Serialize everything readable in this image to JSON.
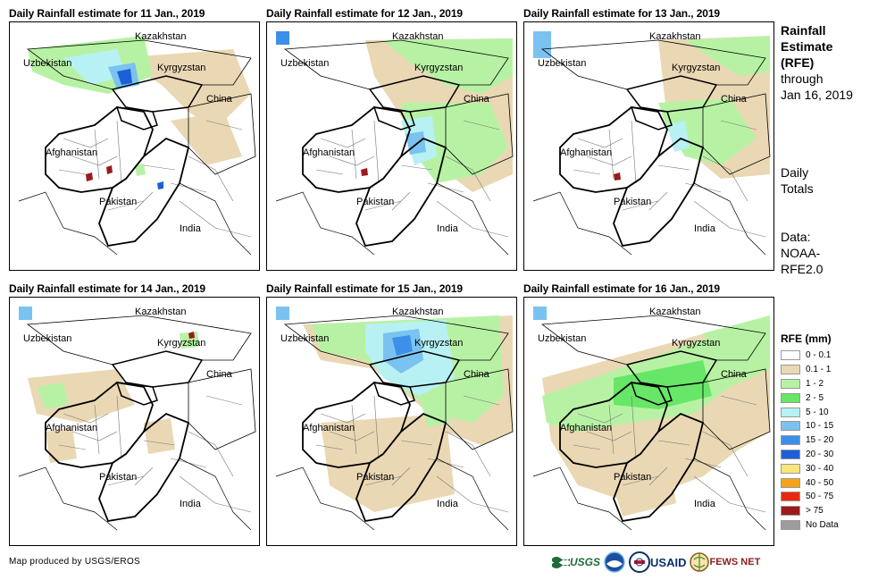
{
  "panels": [
    {
      "title": "Daily Rainfall estimate for 11 Jan., 2019"
    },
    {
      "title": "Daily Rainfall estimate for 12 Jan., 2019"
    },
    {
      "title": "Daily Rainfall estimate for 13 Jan., 2019"
    },
    {
      "title": "Daily Rainfall estimate for 14 Jan., 2019"
    },
    {
      "title": "Daily Rainfall estimate for 15 Jan., 2019"
    },
    {
      "title": "Daily Rainfall estimate for 16 Jan., 2019"
    }
  ],
  "map_labels": {
    "kazakhstan": "Kazakhstan",
    "uzbekistan": "Uzbekistan",
    "kyrgyzstan": "Kyrgyzstan",
    "china": "China",
    "afghanistan": "Afghanistan",
    "pakistan": "Pakistan",
    "india": "India"
  },
  "side_panel": {
    "title_line1": "Rainfall",
    "title_line2": "Estimate",
    "title_line3": "(RFE)",
    "through": "through",
    "date": "Jan 16, 2019",
    "totals_line1": "Daily",
    "totals_line2": "Totals",
    "data_line1": "Data:",
    "data_line2": "NOAA-",
    "data_line3": "RFE2.0"
  },
  "legend": {
    "title": "RFE (mm)",
    "items": [
      {
        "label": "0 - 0.1",
        "color": "#ffffff"
      },
      {
        "label": "0.1 - 1",
        "color": "#ead8b4"
      },
      {
        "label": "1 - 2",
        "color": "#b7f2a4"
      },
      {
        "label": "2 - 5",
        "color": "#67e667"
      },
      {
        "label": "5 - 10",
        "color": "#b7f1f4"
      },
      {
        "label": "10 - 15",
        "color": "#7ac2f0"
      },
      {
        "label": "15 - 20",
        "color": "#3d8fe8"
      },
      {
        "label": "20 - 30",
        "color": "#1c5fd9"
      },
      {
        "label": "30 - 40",
        "color": "#fbe47a"
      },
      {
        "label": "40 - 50",
        "color": "#f7a319"
      },
      {
        "label": "50 - 75",
        "color": "#e8290f"
      },
      {
        "label": "> 75",
        "color": "#9c1a1a"
      },
      {
        "label": "No Data",
        "color": "#9c9c9c"
      }
    ]
  },
  "credit": "Map produced by USGS/EROS",
  "logos": {
    "usgs": "USGS",
    "usaid": "USAID",
    "fewsnet": "FEWS NET"
  }
}
